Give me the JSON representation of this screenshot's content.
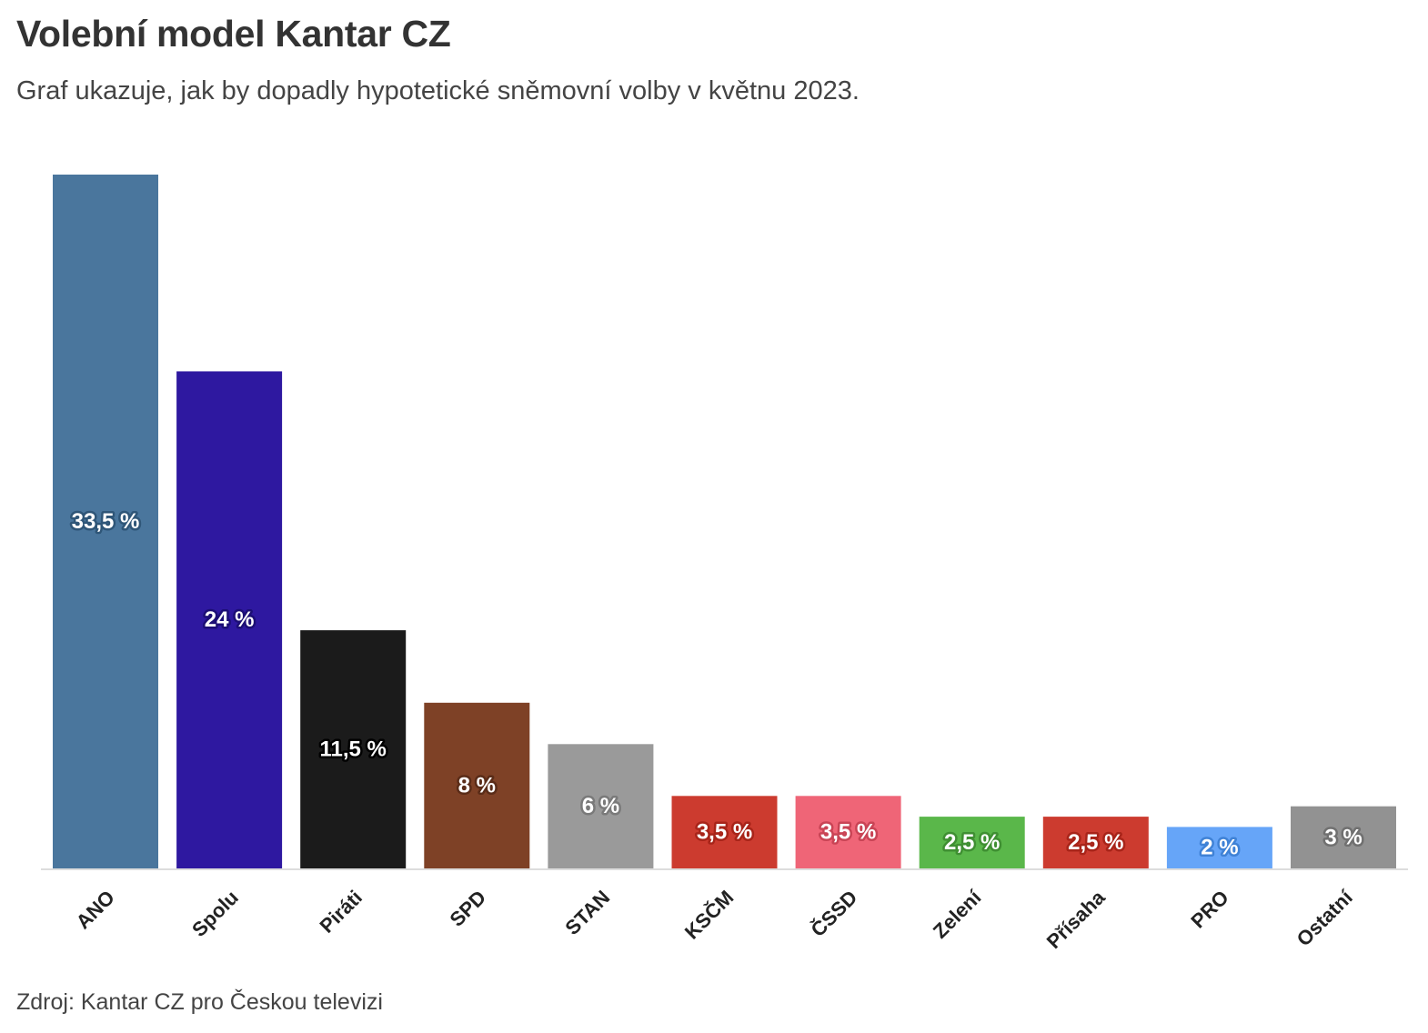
{
  "chart_data": {
    "type": "bar",
    "title": "Volební model Kantar CZ",
    "subtitle": "Graf ukazuje, jak by dopadly hypotetické sněmovní volby v květnu 2023.",
    "source": "Zdroj: Kantar CZ pro Českou televizi",
    "xlabel": "",
    "ylabel": "",
    "ylim": [
      0,
      33.5
    ],
    "grid": false,
    "categories": [
      "ANO",
      "Spolu",
      "Piráti",
      "SPD",
      "STAN",
      "KSČM",
      "ČSSD",
      "Zelení",
      "Přísaha",
      "PRO",
      "Ostatní"
    ],
    "values": [
      33.5,
      24,
      11.5,
      8,
      6,
      3.5,
      3.5,
      2.5,
      2.5,
      2,
      3
    ],
    "value_labels": [
      "33,5 %",
      "24 %",
      "11,5 %",
      "8 %",
      "6 %",
      "3,5 %",
      "3,5 %",
      "2,5 %",
      "2,5 %",
      "2 %",
      "3 %"
    ],
    "colors": [
      "#4a769d",
      "#2e18a0",
      "#1b1b1b",
      "#7e4126",
      "#9a9a9a",
      "#cc3b2f",
      "#ef6577",
      "#5ab74a",
      "#cc3b2f",
      "#66a5f8",
      "#929292"
    ],
    "label_halo_colors": [
      "#2f5678",
      "#1c0e75",
      "#000000",
      "#5a2c18",
      "#7a7a7a",
      "#a82419",
      "#c94455",
      "#3f8f32",
      "#a82419",
      "#3f82d6",
      "#707070"
    ]
  }
}
